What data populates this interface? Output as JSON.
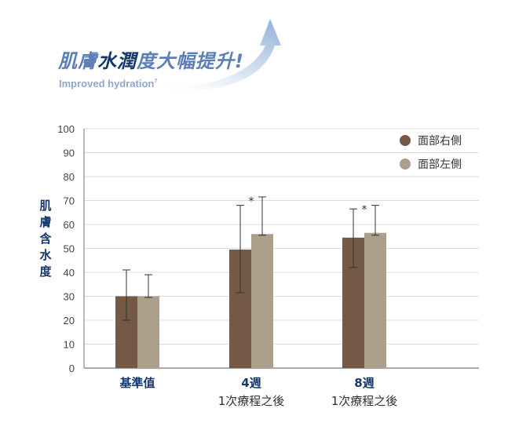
{
  "header": {
    "title_part1": "肌膚",
    "title_emphasis": "水潤",
    "title_part2": "度大幅提升!",
    "subtitle": "Improved hydration",
    "subtitle_sup": "7"
  },
  "colors": {
    "series_right": "#755947",
    "series_left": "#ab9e8b",
    "title_light": "#5b7fb6",
    "title_dark": "#14386b",
    "grid": "#dcdcdc",
    "axis": "#777777"
  },
  "chart_data": {
    "type": "bar",
    "title": "",
    "xlabel": "",
    "ylabel": "肌膚含水度",
    "ylim": [
      0,
      100
    ],
    "yticks": [
      0,
      10,
      20,
      30,
      40,
      50,
      60,
      70,
      80,
      90,
      100
    ],
    "grid": true,
    "legend_position": "top-right",
    "categories": [
      {
        "line1": "基準值",
        "line2": ""
      },
      {
        "line1": "4週",
        "line2": "1次療程之後"
      },
      {
        "line1": "8週",
        "line2": "1次療程之後"
      }
    ],
    "series": [
      {
        "name": "面部右側",
        "color": "#755947",
        "values": [
          30,
          49.5,
          54.5
        ],
        "error_low": [
          20,
          31.5,
          42
        ],
        "error_high": [
          41,
          68,
          66.5
        ]
      },
      {
        "name": "面部左側",
        "color": "#ab9e8b",
        "values": [
          30,
          56,
          56.5
        ],
        "error_low": [
          29.5,
          55.5,
          55.5
        ],
        "error_high": [
          39,
          71.5,
          68
        ]
      }
    ],
    "significance": [
      "",
      "*",
      "*"
    ]
  }
}
